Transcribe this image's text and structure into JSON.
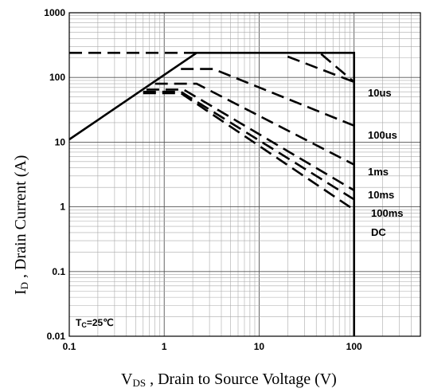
{
  "chart_data": {
    "type": "line",
    "x_scale": "log",
    "y_scale": "log",
    "xlim": [
      0.1,
      500
    ],
    "ylim": [
      0.01,
      1000
    ],
    "grid": true,
    "legend": "none",
    "xtick_labels": [
      "0.1",
      "1",
      "10",
      "100"
    ],
    "xtick_values": [
      0.1,
      1,
      10,
      100
    ],
    "ytick_labels": [
      "0.01",
      "0.1",
      "1",
      "10",
      "100",
      "1000"
    ],
    "ytick_values": [
      0.01,
      0.1,
      1,
      10,
      100,
      1000
    ],
    "xlabel": {
      "main": "V",
      "sub": "DS",
      "rest": " , Drain to Source Voltage (V)"
    },
    "ylabel": {
      "main": "I",
      "sub": "D",
      "rest": " , Drain Current (A)"
    },
    "annotation": {
      "main": "T",
      "sub": "C",
      "rest": "=25℃"
    },
    "curve_labels": [
      "10us",
      "100us",
      "1ms",
      "10ms",
      "100ms",
      "DC"
    ],
    "series": [
      {
        "style": "solid",
        "points": [
          [
            0.1,
            11
          ],
          [
            2.2,
            240
          ],
          [
            100,
            240
          ],
          [
            100,
            0.01
          ]
        ]
      },
      {
        "style": "dashed",
        "points": [
          [
            0.1,
            240
          ],
          [
            2.2,
            240
          ]
        ]
      },
      {
        "style": "dashed",
        "points": [
          [
            20,
            210
          ],
          [
            100,
            85
          ]
        ]
      },
      {
        "style": "dashed",
        "points": [
          [
            45,
            230
          ],
          [
            100,
            85
          ]
        ]
      },
      {
        "style": "dashed",
        "points": [
          [
            1.5,
            135
          ],
          [
            3.3,
            135
          ],
          [
            100,
            18
          ]
        ]
      },
      {
        "style": "dashed",
        "points": [
          [
            0.8,
            80
          ],
          [
            2.2,
            80
          ],
          [
            100,
            4.5
          ]
        ]
      },
      {
        "style": "dashed",
        "points": [
          [
            0.65,
            65
          ],
          [
            1.6,
            65
          ],
          [
            100,
            1.8
          ]
        ]
      },
      {
        "style": "dashed",
        "points": [
          [
            0.6,
            60
          ],
          [
            1.5,
            60
          ],
          [
            100,
            1.3
          ]
        ]
      },
      {
        "style": "dashed",
        "points": [
          [
            0.6,
            57
          ],
          [
            1.5,
            57
          ],
          [
            100,
            0.9
          ]
        ]
      }
    ]
  }
}
